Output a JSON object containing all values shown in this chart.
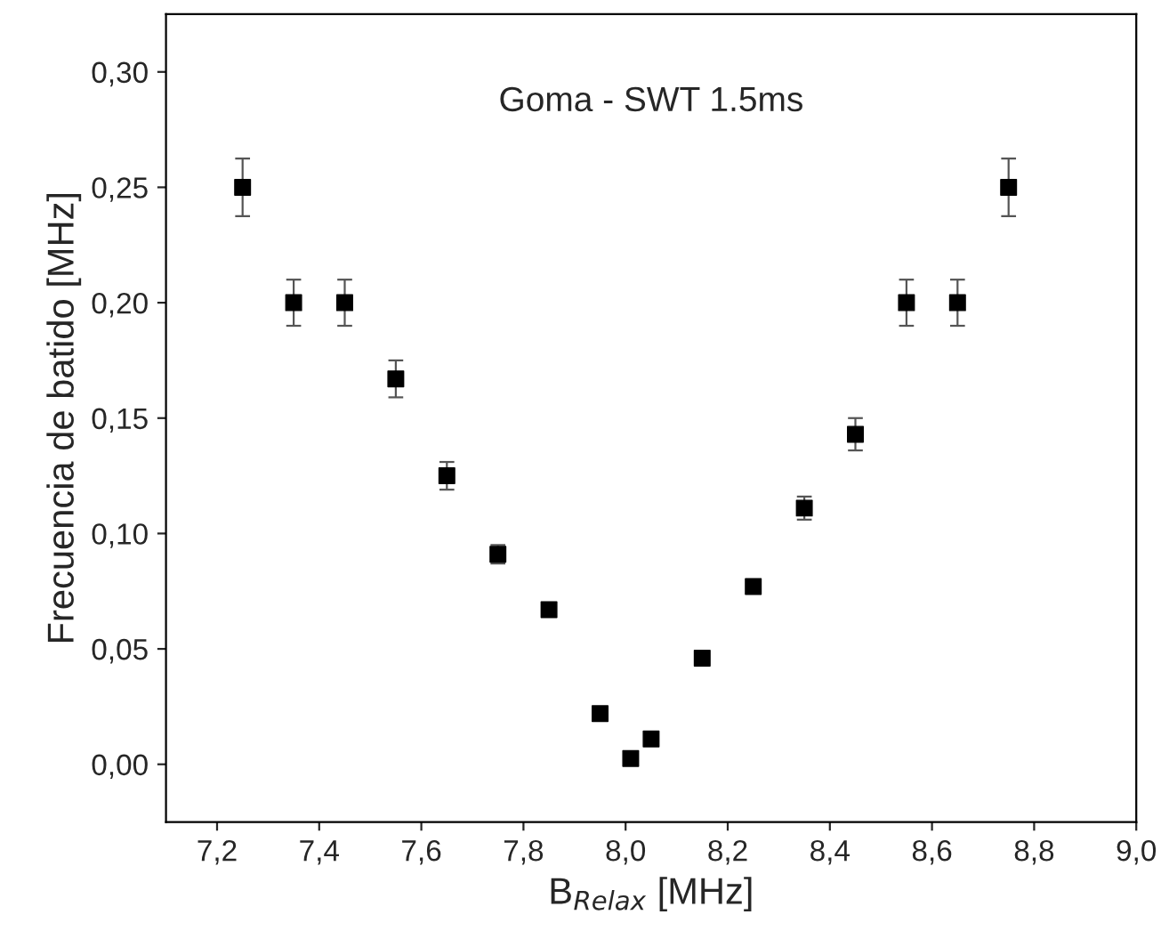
{
  "chart_data": {
    "type": "scatter",
    "xlabel": "B$_{Relax}$ [MHz]",
    "ylabel": "Frecuencia de batido [MHz]",
    "annotations": [
      "Goma - SWT 1.5ms"
    ],
    "x": [
      7.25,
      7.35,
      7.45,
      7.55,
      7.65,
      7.75,
      7.85,
      7.95,
      8.01,
      8.05,
      8.15,
      8.25,
      8.35,
      8.45,
      8.55,
      8.65,
      8.75
    ],
    "series": [
      {
        "color": "#000000",
        "values": [
          0.25,
          0.2,
          0.2,
          0.167,
          0.125,
          0.091,
          0.067,
          0.022,
          0.0025,
          0.011,
          0.046,
          0.077,
          0.111,
          0.143,
          0.2,
          0.2,
          0.25
        ],
        "errors": [
          0.0125,
          0.01,
          0.01,
          0.008,
          0.006,
          0.004,
          0.003,
          null,
          null,
          null,
          null,
          0.003,
          0.005,
          0.007,
          0.01,
          0.01,
          0.0125
        ]
      }
    ],
    "marker": "square",
    "grid": false,
    "legend": false,
    "xlim": [
      7.1,
      9.0
    ],
    "ylim": [
      -0.025,
      0.325
    ],
    "xticks": [
      {
        "value": 7.2,
        "label": "7,2"
      },
      {
        "value": 7.4,
        "label": "7,4"
      },
      {
        "value": 7.6,
        "label": "7,6"
      },
      {
        "value": 7.8,
        "label": "7,8"
      },
      {
        "value": 8.0,
        "label": "8,0"
      },
      {
        "value": 8.2,
        "label": "8,2"
      },
      {
        "value": 8.4,
        "label": "8,4"
      },
      {
        "value": 8.6,
        "label": "8,6"
      },
      {
        "value": 8.8,
        "label": "8,8"
      },
      {
        "value": 9.0,
        "label": "9,0"
      }
    ],
    "yticks": [
      {
        "value": 0.0,
        "label": "0,00"
      },
      {
        "value": 0.05,
        "label": "0,05"
      },
      {
        "value": 0.1,
        "label": "0,10"
      },
      {
        "value": 0.15,
        "label": "0,15"
      },
      {
        "value": 0.2,
        "label": "0,20"
      },
      {
        "value": 0.25,
        "label": "0,25"
      },
      {
        "value": 0.3,
        "label": "0,30"
      }
    ]
  }
}
